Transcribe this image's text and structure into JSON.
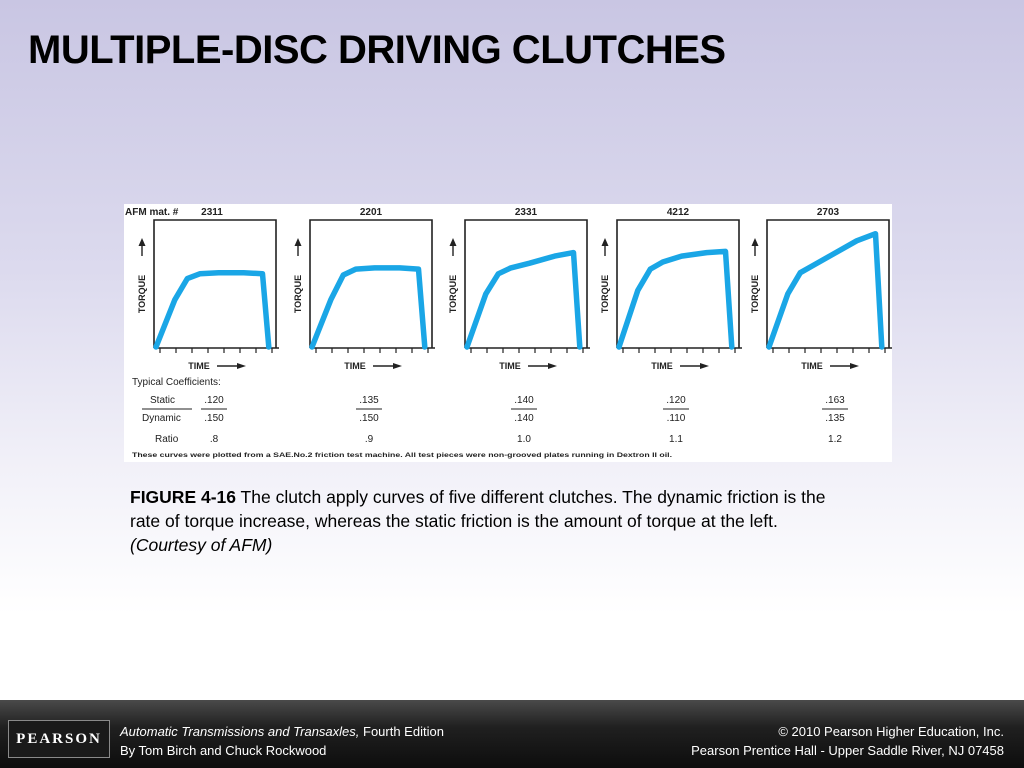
{
  "title": "MULTIPLE-DISC DRIVING CLUTCHES",
  "figure": {
    "mat_label": "AFM mat. #",
    "materials": [
      "2311",
      "2201",
      "2331",
      "4212",
      "2703"
    ],
    "y_axis_label": "TORQUE",
    "x_axis_label": "TIME",
    "coeff_header": "Typical Coefficients:",
    "row_labels": {
      "static": "Static",
      "dynamic": "Dynamic",
      "ratio": "Ratio"
    },
    "static": [
      ".120",
      ".135",
      ".140",
      ".120",
      ".163"
    ],
    "dynamic": [
      ".150",
      ".150",
      ".140",
      ".110",
      ".135"
    ],
    "ratio": [
      ".8",
      ".9",
      "1.0",
      "1.1",
      "1.2"
    ],
    "footnote": "These curves were plotted from a SAE.No.2 friction test machine. All test pieces were non-grooved plates running in Dextron II oil.",
    "curve_color": "#1aa6e6"
  },
  "chart_data": {
    "type": "line",
    "x": [
      0,
      0.15,
      0.25,
      0.35,
      0.5,
      0.7,
      0.85,
      0.9
    ],
    "series": [
      {
        "values": [
          0.0,
          0.4,
          0.58,
          0.62,
          0.63,
          0.63,
          0.62,
          0.0
        ]
      },
      {
        "values": [
          0.0,
          0.4,
          0.61,
          0.66,
          0.67,
          0.67,
          0.66,
          0.0
        ]
      },
      {
        "values": [
          0.0,
          0.45,
          0.62,
          0.67,
          0.71,
          0.77,
          0.8,
          0.0
        ]
      },
      {
        "values": [
          0.0,
          0.48,
          0.66,
          0.72,
          0.77,
          0.8,
          0.81,
          0.0
        ]
      },
      {
        "values": [
          0.0,
          0.45,
          0.63,
          0.69,
          0.78,
          0.9,
          0.96,
          0.0
        ]
      }
    ]
  },
  "caption": {
    "label": "FIGURE 4-16",
    "text": " The clutch apply curves of five different clutches. The dynamic friction is the rate of torque increase, whereas the static friction is the amount of torque at the left. ",
    "credit": "(Courtesy of AFM)"
  },
  "footer": {
    "logo": "PEARSON",
    "book_title": "Automatic Transmissions and Transaxles,",
    "edition": " Fourth Edition",
    "authors": "By Tom Birch and Chuck Rockwood",
    "copyright": "© 2010 Pearson Higher Education, Inc.",
    "publisher": "Pearson Prentice Hall - Upper Saddle River, NJ 07458"
  }
}
